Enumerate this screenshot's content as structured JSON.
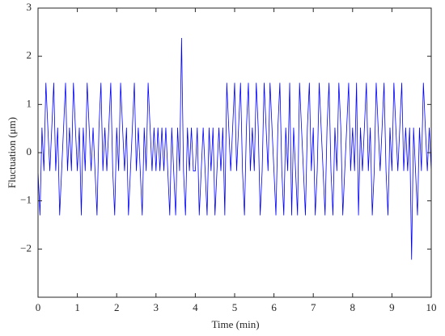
{
  "chart_data": {
    "type": "line",
    "xlabel": "Time (min)",
    "ylabel": "Fluctuation (μm)",
    "color": "#0000ff",
    "xlim": [
      0,
      10
    ],
    "ylim": [
      -3,
      3
    ],
    "xticks": [
      0,
      1,
      2,
      3,
      4,
      5,
      6,
      7,
      8,
      9,
      10
    ],
    "yticks": [
      {
        "value": -2,
        "label": "−2"
      },
      {
        "value": -1,
        "label": "−1"
      },
      0,
      1,
      2,
      3
    ],
    "x": [
      0,
      0.05,
      0.1,
      0.15,
      0.2,
      0.25,
      0.3,
      0.35,
      0.4,
      0.45,
      0.5,
      0.55,
      0.6,
      0.65,
      0.7,
      0.75,
      0.8,
      0.85,
      0.9,
      0.95,
      1,
      1.05,
      1.1,
      1.15,
      1.2,
      1.25,
      1.3,
      1.35,
      1.4,
      1.45,
      1.5,
      1.55,
      1.6,
      1.65,
      1.7,
      1.75,
      1.8,
      1.85,
      1.9,
      1.95,
      2,
      2.05,
      2.1,
      2.15,
      2.2,
      2.25,
      2.3,
      2.35,
      2.4,
      2.45,
      2.5,
      2.55,
      2.6,
      2.65,
      2.7,
      2.75,
      2.8,
      2.85,
      2.9,
      2.95,
      3,
      3.05,
      3.1,
      3.15,
      3.2,
      3.25,
      3.3,
      3.35,
      3.4,
      3.45,
      3.5,
      3.55,
      3.6,
      3.65,
      3.7,
      3.75,
      3.8,
      3.85,
      3.9,
      3.95,
      4,
      4.05,
      4.1,
      4.15,
      4.2,
      4.25,
      4.3,
      4.35,
      4.4,
      4.45,
      4.5,
      4.55,
      4.6,
      4.65,
      4.7,
      4.75,
      4.8,
      4.85,
      4.9,
      4.95,
      5,
      5.05,
      5.1,
      5.15,
      5.2,
      5.25,
      5.3,
      5.35,
      5.4,
      5.45,
      5.5,
      5.55,
      5.6,
      5.65,
      5.7,
      5.75,
      5.8,
      5.85,
      5.9,
      5.95,
      6,
      6.05,
      6.1,
      6.15,
      6.2,
      6.25,
      6.3,
      6.35,
      6.4,
      6.45,
      6.5,
      6.55,
      6.6,
      6.65,
      6.7,
      6.75,
      6.8,
      6.85,
      6.9,
      6.95,
      7,
      7.05,
      7.1,
      7.15,
      7.2,
      7.25,
      7.3,
      7.35,
      7.4,
      7.45,
      7.5,
      7.55,
      7.6,
      7.65,
      7.7,
      7.75,
      7.8,
      7.85,
      7.9,
      7.95,
      8,
      8.05,
      8.1,
      8.15,
      8.2,
      8.25,
      8.3,
      8.35,
      8.4,
      8.45,
      8.5,
      8.55,
      8.6,
      8.65,
      8.7,
      8.75,
      8.8,
      8.85,
      8.9,
      8.95,
      9,
      9.05,
      9.1,
      9.15,
      9.2,
      9.25,
      9.3,
      9.35,
      9.4,
      9.45,
      9.5,
      9.55,
      9.6,
      9.65,
      9.7,
      9.75,
      9.8,
      9.85,
      9.9,
      9.95,
      10
    ],
    "values": [
      -0.38,
      -1.3,
      0.52,
      -0.38,
      1.45,
      0.52,
      -0.38,
      0.52,
      1.45,
      -0.38,
      0.52,
      -1.3,
      -0.38,
      0.52,
      1.45,
      -0.38,
      0.52,
      -0.38,
      1.45,
      0.52,
      -0.38,
      0.52,
      -1.3,
      0.52,
      -0.38,
      1.45,
      0.52,
      -0.38,
      0.52,
      -0.38,
      -1.3,
      0.52,
      1.45,
      -0.38,
      0.52,
      -0.38,
      0.52,
      1.45,
      -0.38,
      -1.3,
      0.52,
      -0.38,
      1.45,
      0.52,
      -0.38,
      0.52,
      -1.3,
      -0.38,
      0.52,
      1.45,
      -0.38,
      0.52,
      -0.38,
      -1.3,
      0.52,
      -0.38,
      1.45,
      0.52,
      -0.38,
      0.52,
      -0.38,
      0.52,
      -0.38,
      0.52,
      -0.38,
      0.52,
      -0.38,
      -1.3,
      0.52,
      -0.38,
      -1.3,
      0.52,
      -0.38,
      2.38,
      -0.38,
      -1.3,
      0.52,
      -0.38,
      0.52,
      -0.38,
      -0.38,
      0.52,
      -1.3,
      -0.38,
      0.52,
      -0.38,
      -1.3,
      0.52,
      -0.38,
      0.52,
      -1.3,
      -0.38,
      0.52,
      -0.38,
      0.52,
      -1.3,
      1.45,
      0.52,
      -0.38,
      0.52,
      1.45,
      -0.38,
      0.52,
      1.45,
      -0.38,
      -1.3,
      0.52,
      1.45,
      -0.38,
      0.52,
      -0.38,
      1.45,
      0.52,
      -1.3,
      -0.38,
      1.45,
      0.52,
      -0.38,
      1.45,
      0.52,
      -0.38,
      -1.3,
      0.52,
      1.45,
      -0.38,
      -1.3,
      0.52,
      -0.38,
      1.45,
      -1.3,
      0.52,
      -0.38,
      -1.3,
      1.45,
      0.52,
      -0.38,
      -1.3,
      0.52,
      1.45,
      -0.38,
      0.52,
      -1.3,
      -0.38,
      1.45,
      0.52,
      -0.38,
      -1.3,
      0.52,
      1.45,
      -0.38,
      -1.3,
      0.52,
      -0.38,
      1.45,
      0.52,
      -1.3,
      -0.38,
      0.52,
      1.45,
      -0.38,
      0.52,
      -0.38,
      1.45,
      -1.3,
      0.52,
      -0.38,
      0.52,
      1.45,
      -0.38,
      0.52,
      -1.3,
      -0.38,
      1.45,
      0.52,
      -0.38,
      0.52,
      1.45,
      -0.38,
      -1.3,
      0.52,
      -0.38,
      1.45,
      0.52,
      -0.38,
      0.52,
      1.45,
      -0.38,
      0.52,
      -0.38,
      0.52,
      -2.22,
      0.52,
      -0.38,
      -1.3,
      0.52,
      -0.38,
      1.45,
      0.52,
      -0.38,
      0.52,
      -0.38
    ]
  }
}
